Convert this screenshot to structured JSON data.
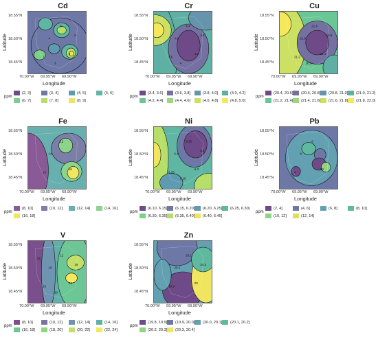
{
  "common": {
    "xlabel": "Longitude",
    "ylabel": "Latitude",
    "xticks": [
      "70.00°W",
      "69.95°W",
      "69.90°W"
    ],
    "yticks": [
      "18.55°N",
      "18.50°N",
      "18.45°N"
    ],
    "legend_title": "ppm"
  },
  "chart_data": [
    {
      "type": "heatmap",
      "title": "Cd",
      "xlabel": "Longitude",
      "ylabel": "Latitude",
      "legend": [
        "(2, 3]",
        "(3, 4]",
        "(4, 5]",
        "(5, 6]",
        "(6, 7]",
        "(7, 8]",
        "(8, 9]"
      ],
      "colors": [
        "#6f4a88",
        "#6e78a7",
        "#5f9bb0",
        "#5fb6a2",
        "#7dd08c",
        "#b6df6a",
        "#f0e55e"
      ],
      "contour_labels": [
        "4",
        "5",
        "6",
        "7",
        "8",
        "3"
      ]
    },
    {
      "type": "heatmap",
      "title": "Cr",
      "xlabel": "Longitude",
      "ylabel": "Latitude",
      "legend": [
        "(3.4, 3.6]",
        "(3.6, 3.8]",
        "(3.8, 4.0]",
        "(4.0, 4.2]",
        "(4.2, 4.4]",
        "(4.4, 4.6]",
        "(4.6, 4.8]",
        "(4.8, 5.0]"
      ],
      "colors": [
        "#6f4a88",
        "#7471a2",
        "#6694ad",
        "#5fb0a4",
        "#6bc695",
        "#9bd77c",
        "#cce064",
        "#f5e85a"
      ],
      "contour_labels": [
        "4.6",
        "4.4",
        "4.2",
        "3.6",
        "3.8",
        "4"
      ]
    },
    {
      "type": "heatmap",
      "title": "Cu",
      "xlabel": "Longitude",
      "ylabel": "Latitude",
      "legend": [
        "(20.4, 20.6]",
        "(20.6, 20.8]",
        "(20.8, 21.0]",
        "(21.0, 21.2]",
        "(21.2, 21.4]",
        "(21.4, 21.6]",
        "(21.6, 21.8]",
        "(21.8, 22.0]"
      ],
      "colors": [
        "#6f4a88",
        "#7471a2",
        "#6694ad",
        "#5fb0a4",
        "#6bc695",
        "#9bd77c",
        "#cce064",
        "#f5e85a"
      ],
      "contour_labels": [
        "21.8",
        "21.6",
        "21.4",
        "21.2",
        "20.8",
        "20.6"
      ]
    },
    {
      "type": "heatmap",
      "title": "Fe",
      "xlabel": "Longitude",
      "ylabel": "Latitude",
      "legend": [
        "(8, 10]",
        "(10, 12]",
        "(12, 14]",
        "(14, 16]",
        "(16, 18]"
      ],
      "colors": [
        "#8a5a96",
        "#7b7fa8",
        "#68b0b0",
        "#8cd48c",
        "#f0e55e"
      ],
      "contour_labels": [
        "14",
        "12",
        "16",
        "10"
      ]
    },
    {
      "type": "heatmap",
      "title": "Ni",
      "xlabel": "Longitude",
      "ylabel": "Latitude",
      "legend": [
        "(6.10, 6.15]",
        "(6.15, 6.20]",
        "(6.20, 6.25]",
        "(6.25, 6.30]",
        "(6.30, 6.35]",
        "(6.35, 6.40]",
        "(6.40, 6.45]"
      ],
      "colors": [
        "#6f4a88",
        "#6e78a7",
        "#5f9bb0",
        "#5fb6a2",
        "#7dd08c",
        "#b6df6a",
        "#f0e55e"
      ],
      "contour_labels": [
        "6.4",
        "6.35",
        "6.3",
        "6.25",
        "6.2",
        "6.15"
      ]
    },
    {
      "type": "heatmap",
      "title": "Pb",
      "xlabel": "Longitude",
      "ylabel": "Latitude",
      "legend": [
        "(2, 4]",
        "(4, 6]",
        "(6, 8]",
        "(8, 10]",
        "(10, 12]",
        "(12, 14]"
      ],
      "colors": [
        "#6f4a88",
        "#6e78a7",
        "#62a0b2",
        "#5fb99e",
        "#8fd484",
        "#d8e161"
      ],
      "contour_labels": [
        "8",
        "6",
        "10",
        "4"
      ]
    },
    {
      "type": "heatmap",
      "title": "V",
      "xlabel": "Longitude",
      "ylabel": "Latitude",
      "legend": [
        "(8, 10]",
        "(10, 12]",
        "(12, 14]",
        "(14, 16]",
        "(16, 18]",
        "(18, 20]",
        "(20, 22]",
        "(22, 24]"
      ],
      "colors": [
        "#7a4f8c",
        "#7c72a6",
        "#6e94b0",
        "#60b0a8",
        "#6cc696",
        "#8ed680",
        "#c2df68",
        "#f5e85a"
      ],
      "contour_labels": [
        "10",
        "12",
        "14",
        "16",
        "18",
        "20",
        "22"
      ]
    },
    {
      "type": "heatmap",
      "title": "Zn",
      "xlabel": "Longitude",
      "ylabel": "Latitude",
      "legend": [
        "(19.8, 19.9]",
        "(19.9, 20.0]",
        "(20.0, 20.1]",
        "(20.1, 20.2]",
        "(20.2, 20.3]",
        "(20.3, 20.4]"
      ],
      "colors": [
        "#6f4a88",
        "#6e78a7",
        "#62a0b2",
        "#5fb99e",
        "#8fd484",
        "#f0e55e"
      ],
      "contour_labels": [
        "20.2",
        "20.1",
        "20",
        "19.9",
        "20.3"
      ]
    }
  ]
}
